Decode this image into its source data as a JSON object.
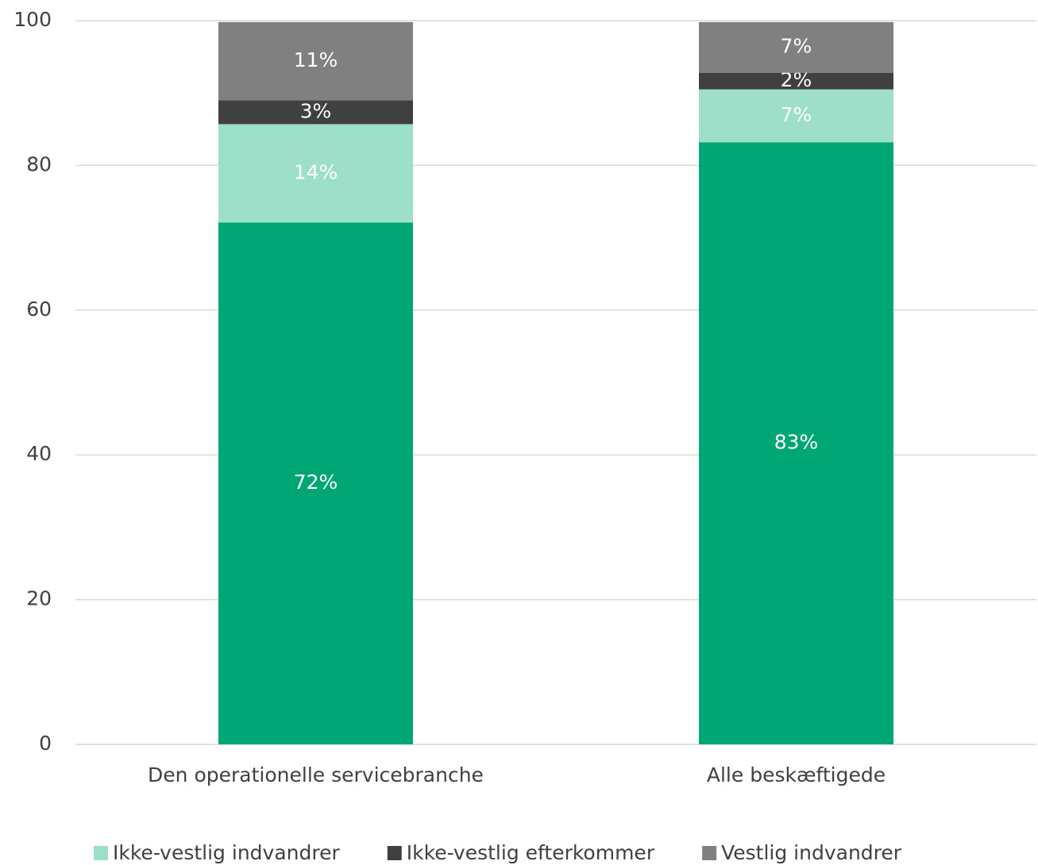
{
  "chart_data": {
    "type": "stacked_bar",
    "categories": [
      "Den operationelle servicebranche",
      "Alle beskæftigede"
    ],
    "series": [
      {
        "color": "#00a775",
        "values": [
          72.1,
          83.2
        ],
        "value_labels": [
          "72%",
          "83%"
        ]
      },
      {
        "name": "Ikke-vestlig indvandrer",
        "color": "#9ddfc8",
        "values": [
          13.6,
          7.3
        ],
        "value_labels": [
          "14%",
          "7%"
        ]
      },
      {
        "name": "Ikke-vestlig efterkommer",
        "color": "#404040",
        "values": [
          3.3,
          2.3
        ],
        "value_labels": [
          "3%",
          "2%"
        ]
      },
      {
        "name": "Vestlig indvandrer",
        "color": "#808080",
        "values": [
          10.8,
          7.0
        ],
        "value_labels": [
          "11%",
          "7%"
        ]
      }
    ],
    "ylim": [
      0,
      100
    ],
    "yticks": [
      0,
      20,
      40,
      60,
      80,
      100
    ],
    "grid": true,
    "legend": "bottom"
  }
}
